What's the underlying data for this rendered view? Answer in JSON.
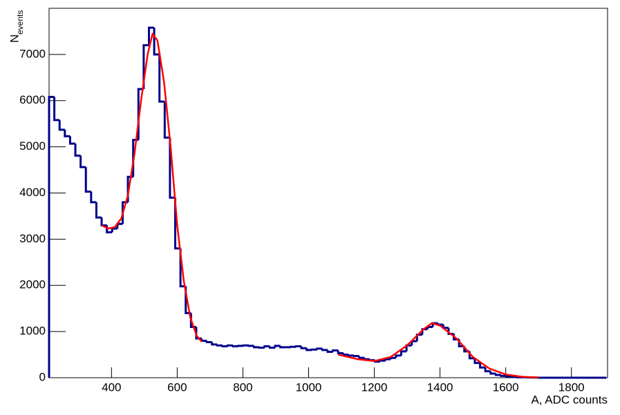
{
  "chart_data": {
    "type": "histogram",
    "x_label": "A, ADC counts",
    "y_label": {
      "main": "N",
      "sub": "events"
    },
    "xlim": [
      210,
      1910
    ],
    "ylim": [
      0,
      8000
    ],
    "xticks": [
      400,
      600,
      800,
      1000,
      1200,
      1400,
      1600,
      1800
    ],
    "yticks": [
      0,
      1000,
      2000,
      3000,
      4000,
      5000,
      6000,
      7000
    ],
    "bins": [
      210,
      226,
      242,
      258,
      274,
      290,
      306,
      322,
      338,
      354,
      370,
      386,
      402,
      418,
      434,
      450,
      466,
      482,
      498,
      514,
      530,
      546,
      562,
      578,
      594,
      610,
      626,
      642,
      658,
      674,
      690,
      706,
      722,
      738,
      754,
      770,
      786,
      802,
      818,
      834,
      850,
      866,
      882,
      898,
      914,
      930,
      946,
      962,
      978,
      994,
      1010,
      1026,
      1042,
      1058,
      1074,
      1090,
      1106,
      1122,
      1138,
      1154,
      1170,
      1186,
      1202,
      1218,
      1234,
      1250,
      1266,
      1282,
      1298,
      1314,
      1330,
      1346,
      1362,
      1378,
      1394,
      1410,
      1426,
      1442,
      1458,
      1474,
      1490,
      1506,
      1522,
      1538,
      1554,
      1570,
      1586,
      1602,
      1618,
      1634,
      1650,
      1666,
      1682,
      1698,
      1714,
      1730,
      1746,
      1762,
      1778,
      1794,
      1810,
      1826,
      1842,
      1858,
      1874,
      1890,
      1906
    ],
    "values": [
      6080,
      5580,
      5370,
      5230,
      5070,
      4810,
      4560,
      4030,
      3800,
      3470,
      3300,
      3150,
      3230,
      3330,
      3800,
      4350,
      5150,
      6250,
      7200,
      7580,
      7000,
      5980,
      5200,
      3900,
      2800,
      1980,
      1400,
      1100,
      850,
      800,
      770,
      720,
      700,
      680,
      700,
      680,
      690,
      700,
      690,
      660,
      650,
      680,
      650,
      690,
      660,
      660,
      670,
      680,
      640,
      600,
      610,
      630,
      600,
      560,
      590,
      530,
      500,
      480,
      470,
      430,
      400,
      380,
      350,
      370,
      400,
      430,
      480,
      570,
      700,
      790,
      930,
      1050,
      1100,
      1180,
      1150,
      1080,
      950,
      830,
      680,
      570,
      420,
      320,
      220,
      140,
      90,
      60,
      40,
      30,
      20,
      10,
      10,
      5,
      3,
      0,
      0,
      0,
      0,
      0,
      0,
      0,
      0,
      0,
      0,
      0,
      0,
      0
    ],
    "color": "#00008b",
    "fit": {
      "color": "#ff0000",
      "x": [
        370,
        390,
        410,
        430,
        450,
        470,
        490,
        510,
        525,
        540,
        560,
        580,
        600,
        620,
        640,
        660,
        675,
        880,
        1090,
        1120,
        1150,
        1200,
        1250,
        1300,
        1350,
        1375,
        1400,
        1450,
        1500,
        1550,
        1600,
        1650,
        1700
      ],
      "values": [
        3300,
        3230,
        3260,
        3450,
        3950,
        4850,
        6000,
        7000,
        7450,
        7300,
        6400,
        5000,
        3300,
        2100,
        1300,
        900,
        780,
        null,
        500,
        450,
        400,
        360,
        450,
        700,
        1050,
        1180,
        1130,
        850,
        450,
        200,
        70,
        20,
        5
      ]
    }
  }
}
